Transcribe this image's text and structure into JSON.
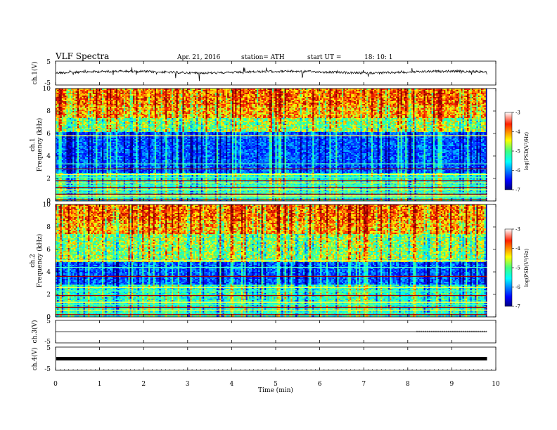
{
  "header": {
    "title": "VLF Spectra",
    "date": "Apr. 21, 2016",
    "station": "station= ATH",
    "start_label": "start UT =",
    "start_time": "18: 10: 1"
  },
  "chart_data": [
    {
      "type": "line",
      "panel": "ch1-waveform",
      "ylabel": "ch.1(V)",
      "ylim": [
        -5,
        5
      ],
      "yticks": [
        "5",
        "-5"
      ],
      "xlim": [
        0,
        10
      ],
      "data_end_min": 9.8,
      "baseline_v": 0.4,
      "color": "#000000"
    },
    {
      "type": "heatmap",
      "panel": "ch1-spectrogram",
      "ylabel": "ch.1",
      "ylabel2": "Frequency (kHz)",
      "ylim": [
        0,
        10
      ],
      "yticks": [
        "0",
        "2",
        "4",
        "6",
        "8",
        "10"
      ],
      "xlim": [
        0,
        10
      ],
      "data_end_min": 9.8,
      "colorbar": {
        "label": "log(PSD(V²/Hz)",
        "range": [
          -7,
          -3
        ],
        "ticks": [
          "-3",
          "-4",
          "-5",
          "-6",
          "-7"
        ]
      },
      "quiet_band_khz": [
        2.6,
        6.2
      ],
      "hot_band_khz": [
        7.4,
        10
      ],
      "line_freqs_khz": [
        0.1,
        0.3,
        0.45,
        0.6,
        0.75,
        1.0,
        1.2,
        1.4,
        1.6,
        1.8,
        2.1,
        2.35,
        2.85,
        3.3,
        5.8
      ]
    },
    {
      "type": "heatmap",
      "panel": "ch2-spectrogram",
      "ylabel": "ch.2",
      "ylabel2": "Frequency (kHz)",
      "ylim": [
        0,
        10
      ],
      "yticks": [
        "0",
        "2",
        "4",
        "6",
        "8",
        "10"
      ],
      "xlim": [
        0,
        10
      ],
      "data_end_min": 9.8,
      "colorbar": {
        "label": "log(PSD(V²/Hz)",
        "range": [
          -7,
          -3
        ],
        "ticks": [
          "-3",
          "-4",
          "-5",
          "-6",
          "-7"
        ]
      },
      "quiet_band_khz": [
        3.0,
        5.0
      ],
      "hot_band_khz": [
        7.4,
        10
      ],
      "line_freqs_khz": [
        0.2,
        0.35,
        0.6,
        0.85,
        1.1,
        1.3,
        1.9,
        2.3,
        2.6,
        3.6,
        4.4,
        5.0
      ]
    },
    {
      "type": "line",
      "panel": "ch3-waveform",
      "ylabel": "ch.3(V)",
      "ylim": [
        -5,
        5
      ],
      "yticks": [
        "5",
        "-5"
      ],
      "xlim": [
        0,
        10
      ],
      "data_end_min": 9.8,
      "baseline_v": 0.0,
      "color": "#000000"
    },
    {
      "type": "line",
      "panel": "ch4-waveform",
      "ylabel": "ch.4(V)",
      "ylim": [
        -5,
        5
      ],
      "yticks": [
        "5",
        "-5"
      ],
      "xlim": [
        0,
        10
      ],
      "data_end_min": 9.8,
      "baseline_v": 0.0,
      "color": "#000000"
    }
  ],
  "xaxis": {
    "label": "Time (min)",
    "ticks": [
      "0",
      "1",
      "2",
      "3",
      "4",
      "5",
      "6",
      "7",
      "8",
      "9",
      "10"
    ]
  }
}
